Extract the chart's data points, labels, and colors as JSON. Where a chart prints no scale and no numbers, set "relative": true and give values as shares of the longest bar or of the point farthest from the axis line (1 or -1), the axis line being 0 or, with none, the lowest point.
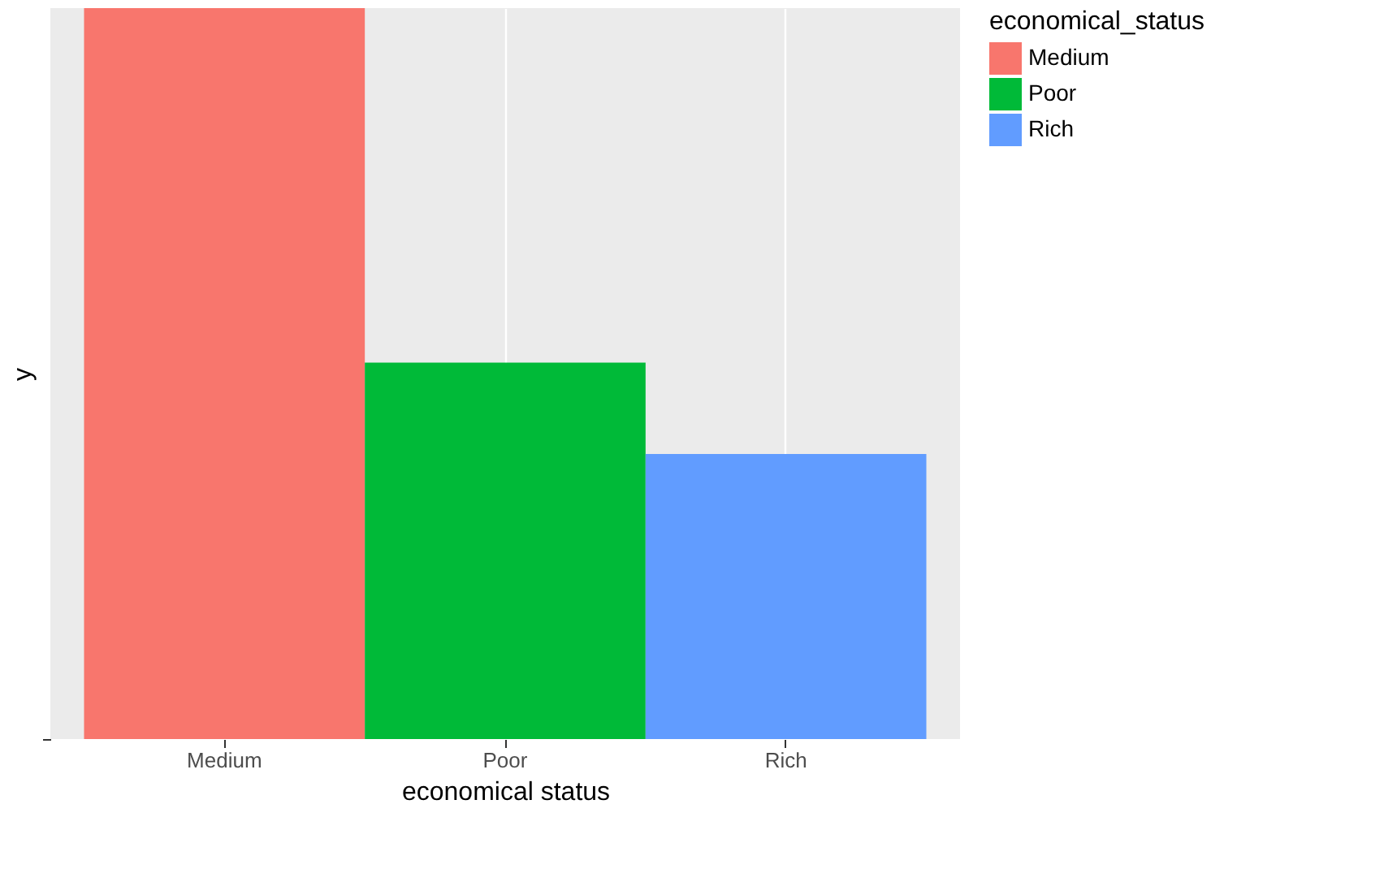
{
  "chart_data": {
    "type": "bar",
    "relative": true,
    "categories": [
      "Medium",
      "Poor",
      "Rich"
    ],
    "series": [
      {
        "name": "Medium",
        "color": "#f8766d",
        "values": [
          1,
          null,
          null
        ]
      },
      {
        "name": "Poor",
        "color": "#00ba38",
        "values": [
          null,
          0.515,
          null
        ]
      },
      {
        "name": "Rich",
        "color": "#619cff",
        "values": [
          null,
          null,
          0.39
        ]
      }
    ],
    "xlabel": "economical status",
    "ylabel": "y",
    "legend_title": "economical_status",
    "legend": "right",
    "grid": "x"
  }
}
